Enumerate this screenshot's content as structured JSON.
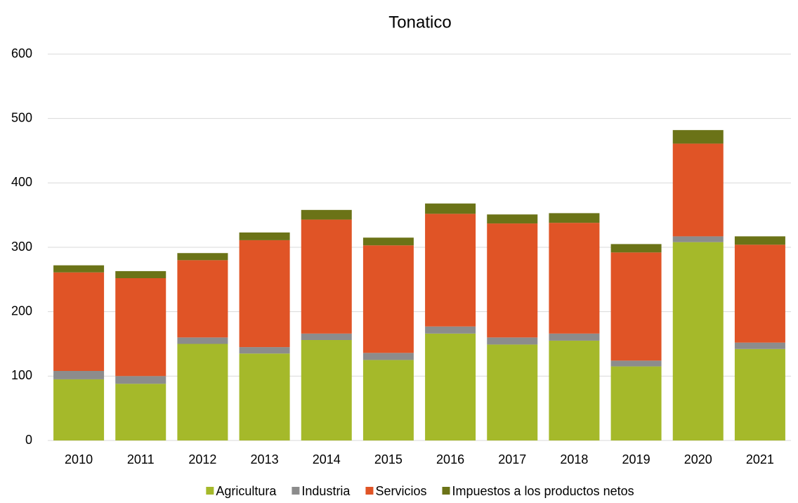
{
  "chart_data": {
    "type": "stacked_bar",
    "title": "Tonatico",
    "categories": [
      "2010",
      "2011",
      "2012",
      "2013",
      "2014",
      "2015",
      "2016",
      "2017",
      "2018",
      "2019",
      "2020",
      "2021"
    ],
    "series": [
      {
        "name": "Agricultura",
        "color": "#a5b92a",
        "values": [
          95,
          88,
          150,
          135,
          156,
          125,
          166,
          149,
          155,
          115,
          308,
          142
        ]
      },
      {
        "name": "Industria",
        "color": "#8c8c8c",
        "values": [
          13,
          12,
          10,
          10,
          10,
          11,
          11,
          11,
          11,
          9,
          9,
          10
        ]
      },
      {
        "name": "Servicios",
        "color": "#e05426",
        "values": [
          153,
          152,
          120,
          166,
          177,
          167,
          175,
          177,
          172,
          168,
          144,
          152
        ]
      },
      {
        "name": "Impuestos a los productos netos",
        "color": "#6b7317",
        "values": [
          11,
          11,
          11,
          12,
          15,
          12,
          16,
          14,
          15,
          13,
          21,
          13
        ]
      }
    ],
    "ylim": [
      0,
      600
    ],
    "yticks": [
      0,
      100,
      200,
      300,
      400,
      500,
      600
    ],
    "grid": true,
    "legend": "bottom"
  }
}
